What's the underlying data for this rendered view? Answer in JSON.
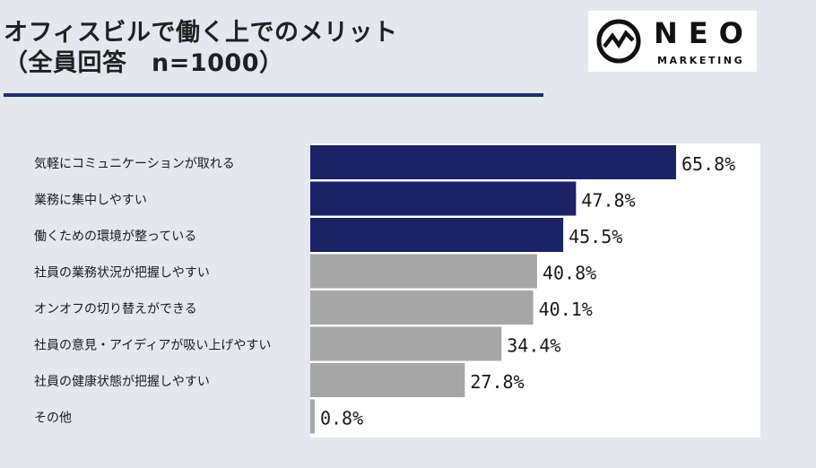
{
  "title": {
    "line1": "オフィスビルで働く上でのメリット",
    "line2": "（全員回答　n=1000）"
  },
  "logo": {
    "word": "NEO",
    "sub": "MARKETING"
  },
  "colors": {
    "highlight": "#1c2266",
    "normal": "#a6a6a6",
    "rule": "#202c6b"
  },
  "chart_data": {
    "type": "bar",
    "orientation": "horizontal",
    "categories": [
      "気軽にコミュニケーションが取れる",
      "業務に集中しやすい",
      "働くための環境が整っている",
      "社員の業務状況が把握しやすい",
      "オンオフの切り替えができる",
      "社員の意見・アイディアが吸い上げやすい",
      "社員の健康状態が把握しやすい",
      "その他"
    ],
    "values": [
      65.8,
      47.8,
      45.5,
      40.8,
      40.1,
      34.4,
      27.8,
      0.8
    ],
    "value_labels": [
      "65.8%",
      "47.8%",
      "45.5%",
      "40.8%",
      "40.1%",
      "34.4%",
      "27.8%",
      "0.8%"
    ],
    "highlighted_count": 3,
    "xlim": [
      0,
      100
    ],
    "grid": false,
    "legend": "none"
  }
}
